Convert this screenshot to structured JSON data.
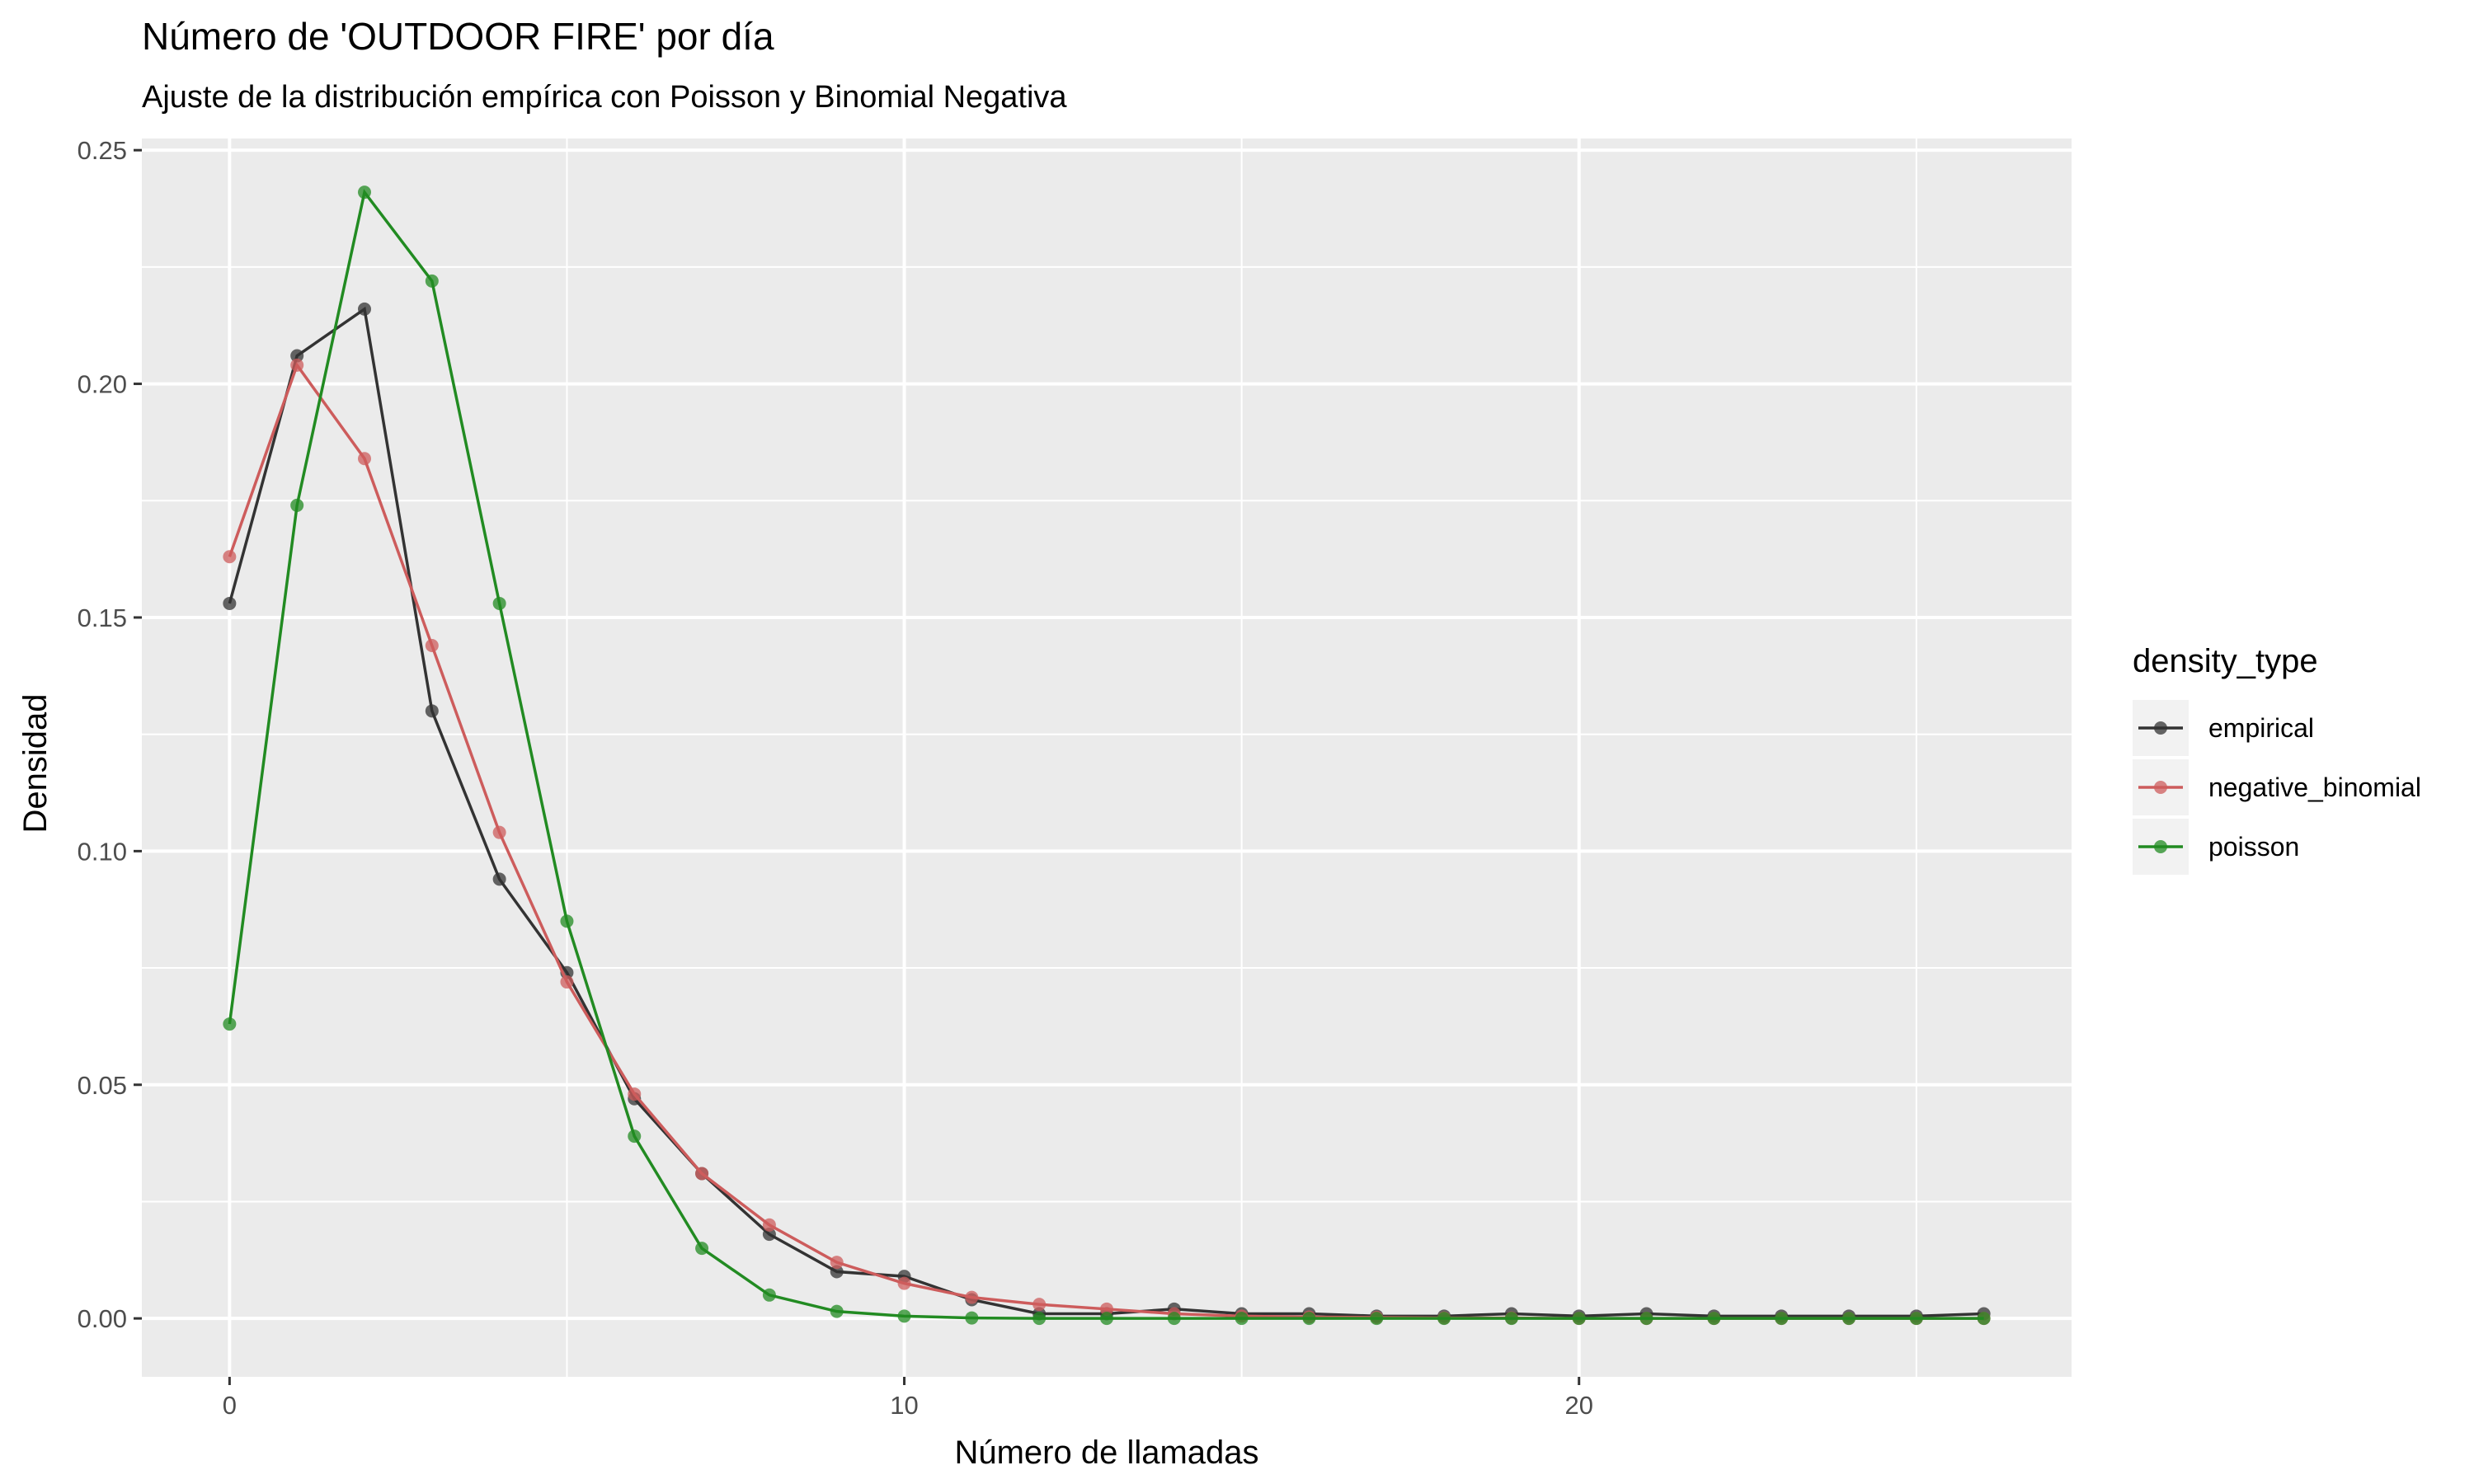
{
  "chart_data": {
    "type": "line",
    "title": "Número de 'OUTDOOR FIRE' por día",
    "subtitle": "Ajuste de la distribución empírica con Poisson y Binomial Negativa",
    "xlabel": "Número de llamadas",
    "ylabel": "Densidad",
    "xlim": [
      -1.3,
      27.3
    ],
    "ylim": [
      -0.0125,
      0.2525
    ],
    "x_ticks": [
      0,
      10,
      20
    ],
    "x_tick_labels": [
      "0",
      "10",
      "20"
    ],
    "y_ticks": [
      0.0,
      0.05,
      0.1,
      0.15,
      0.2,
      0.25
    ],
    "y_tick_labels": [
      "0.00",
      "0.05",
      "0.10",
      "0.15",
      "0.20",
      "0.25"
    ],
    "grid": true,
    "legend_title": "density_type",
    "legend_position": "right",
    "x": [
      0,
      1,
      2,
      3,
      4,
      5,
      6,
      7,
      8,
      9,
      10,
      11,
      12,
      13,
      14,
      15,
      16,
      17,
      18,
      19,
      20,
      21,
      22,
      23,
      24,
      25,
      26
    ],
    "series": [
      {
        "name": "empirical",
        "color": "#333333",
        "values": [
          0.153,
          0.206,
          0.216,
          0.13,
          0.094,
          0.074,
          0.047,
          0.031,
          0.018,
          0.01,
          0.009,
          0.004,
          0.001,
          0.001,
          0.002,
          0.001,
          0.001,
          0.0005,
          0.0005,
          0.001,
          0.0005,
          0.001,
          0.0005,
          0.0005,
          0.0005,
          0.0005,
          0.001
        ]
      },
      {
        "name": "negative_binomial",
        "color": "#CD5C5C",
        "values": [
          0.163,
          0.204,
          0.184,
          0.144,
          0.104,
          0.072,
          0.048,
          0.031,
          0.02,
          0.012,
          0.0075,
          0.0045,
          0.003,
          0.002,
          0.001,
          0.0005,
          0.0003,
          0.0002,
          0.0001,
          0.0001,
          0.0,
          0.0,
          0.0,
          0.0,
          0.0,
          0.0,
          0.0
        ]
      },
      {
        "name": "poisson",
        "color": "#228B22",
        "values": [
          0.063,
          0.174,
          0.241,
          0.222,
          0.153,
          0.085,
          0.039,
          0.015,
          0.005,
          0.0015,
          0.0005,
          0.0001,
          0.0,
          0.0,
          0.0,
          0.0,
          0.0,
          0.0,
          0.0,
          0.0,
          0.0,
          0.0,
          0.0,
          0.0,
          0.0,
          0.0,
          0.0
        ]
      }
    ]
  }
}
